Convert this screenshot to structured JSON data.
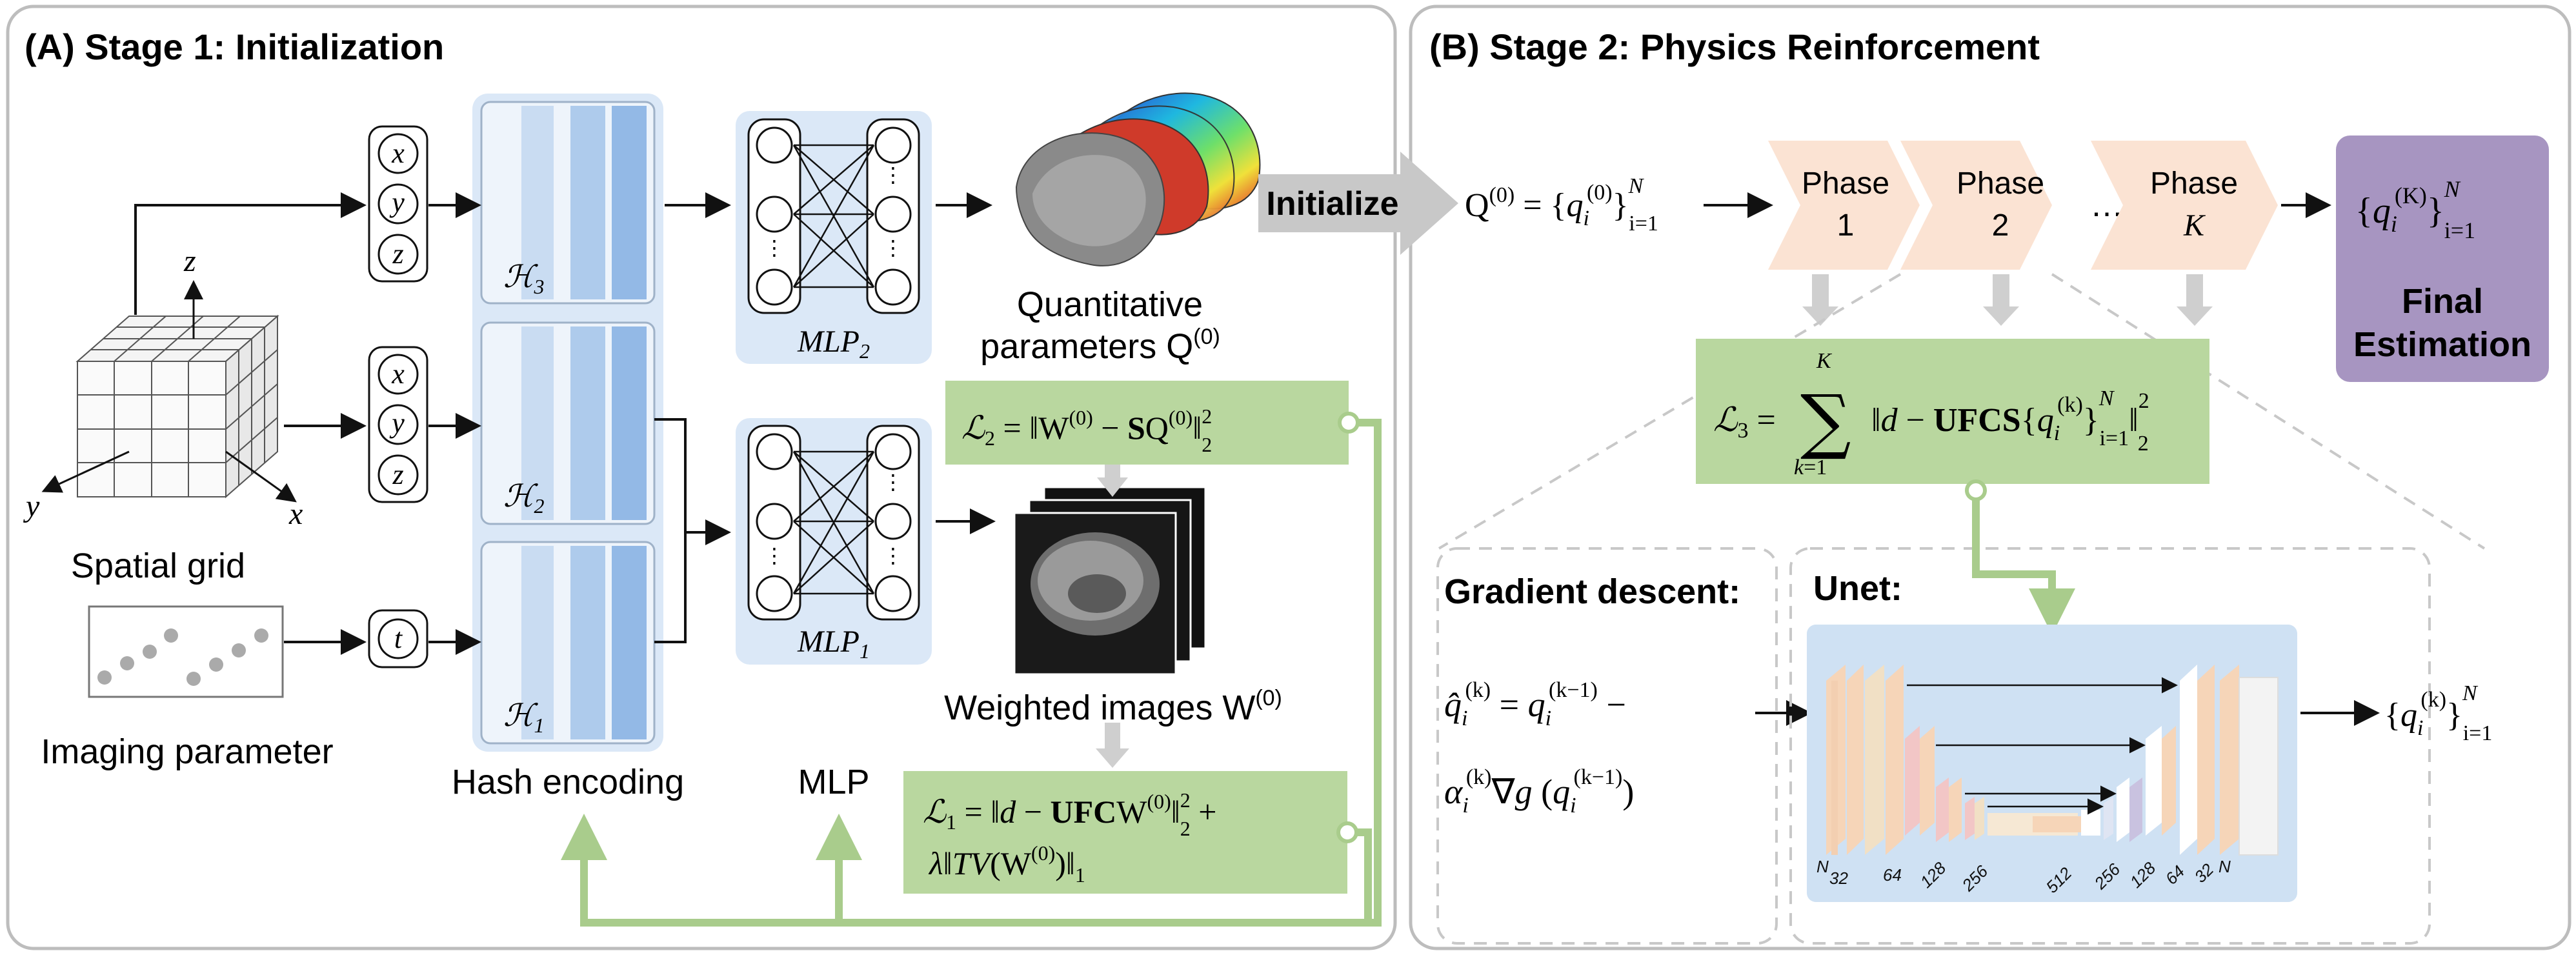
{
  "stage1": {
    "title": "(A) Stage 1: Initialization",
    "inputs_xyz": [
      "x",
      "y",
      "z"
    ],
    "input_t": "t",
    "axes": {
      "x": "x",
      "y": "y",
      "z": "z"
    },
    "spatial_grid_label": "Spatial grid",
    "imaging_parameter_label": "Imaging parameter",
    "hash_labels": [
      "ℋ3",
      "ℋ2",
      "ℋ1"
    ],
    "hash_encoding_label": "Hash encoding",
    "mlp2_label": "MLP2",
    "mlp1_label": "MLP1",
    "mlp_label": "MLP",
    "quant_label_line1": "Quantitative",
    "quant_label_line2": "parameters Q(0)",
    "weighted_label": "Weighted images W(0)",
    "loss2": "ℒ2 = ‖W(0) − SQ(0)‖²₂",
    "loss1_line1": "ℒ1 = ‖d − UFCW(0)‖²₂ +",
    "loss1_line2": "λ‖TV(W(0))‖₁"
  },
  "initialize_label": "Initialize",
  "stage2": {
    "title": "(B) Stage 2: Physics Reinforcement",
    "q0_expr": "Q(0) = {qi(0)}Ni=1",
    "phases": [
      {
        "line1": "Phase",
        "line2": "1"
      },
      {
        "line1": "Phase",
        "line2": "2"
      },
      {
        "line1": "Phase",
        "line2": "K"
      }
    ],
    "ellipsis": "…",
    "final_expr": "{qi(K)}Ni=1",
    "final_label_line1": "Final",
    "final_label_line2": "Estimation",
    "loss3": "ℒ3 = Σ ‖d − UFCS{qi(k)}Ni=1‖²₂",
    "gradient_title": "Gradient descent:",
    "gradient_line1": "q̂i(k) = qi(k−1) −",
    "gradient_line2": "αi(k)∇g(qi(k−1))",
    "unet_title": "Unet:",
    "unet_channels": [
      "N",
      "32",
      "64",
      "128",
      "256",
      "512",
      "256",
      "128",
      "64",
      "32",
      "N"
    ],
    "output_expr": "{qi(k)}Ni=1"
  },
  "colors": {
    "panel_border": "#bdbdbd",
    "hash_bg": "#dbe8f7",
    "hash_col_light": "#c9dcf2",
    "hash_col_mid": "#aecbec",
    "hash_col_dark": "#93b9e6",
    "mlp_bg": "#dbe8f7",
    "loss_bg": "#b9d79f",
    "phase_bg": "#fbe3d3",
    "final_bg": "#a795c1",
    "green_line": "#a9cc8c",
    "grey_arrow": "#cfcfcf",
    "unet_bg": "#cfe1f3"
  }
}
